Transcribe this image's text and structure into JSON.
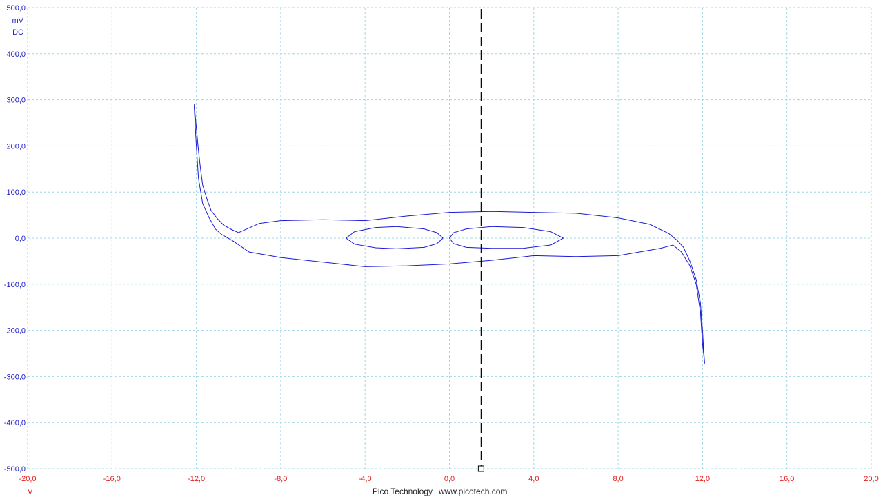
{
  "chart_data": {
    "type": "line",
    "x_unit": "V",
    "y_unit": "mV",
    "y_coupling": "DC",
    "xlim": [
      -20,
      20
    ],
    "ylim": [
      -500,
      500
    ],
    "x_ticks": [
      -20,
      -16,
      -12,
      -8,
      -4,
      0,
      4,
      8,
      12,
      16,
      20
    ],
    "y_ticks": [
      500,
      400,
      300,
      200,
      100,
      0,
      -100,
      -200,
      -300,
      -400,
      -500
    ],
    "x_tick_labels": [
      "-20,0",
      "-16,0",
      "-12,0",
      "-8,0",
      "-4,0",
      "0,0",
      "4,0",
      "8,0",
      "12,0",
      "16,0",
      "20,0"
    ],
    "y_tick_labels": [
      "500,0",
      "400,0",
      "300,0",
      "200,0",
      "100,0",
      "0,0",
      "-100,0",
      "-200,0",
      "-300,0",
      "-400,0",
      "-500,0"
    ],
    "grid": true,
    "colors": {
      "trace": "#1a1ad6",
      "x_axis_text": "#e02020",
      "y_axis_text": "#2020c8",
      "grid": "#9fd8e6"
    },
    "cursor": {
      "x": 1.5
    },
    "series": [
      {
        "values": [
          [
            -12.1,
            290
          ],
          [
            -12.0,
            240
          ],
          [
            -11.9,
            190
          ],
          [
            -11.8,
            150
          ],
          [
            -11.7,
            115
          ],
          [
            -11.5,
            85
          ],
          [
            -11.3,
            60
          ],
          [
            -11.0,
            42
          ],
          [
            -10.7,
            28
          ],
          [
            -10.3,
            18
          ],
          [
            -10.0,
            12
          ],
          [
            -9.0,
            32
          ],
          [
            -8.0,
            38
          ],
          [
            -6.0,
            40
          ],
          [
            -4.0,
            38
          ],
          [
            -2.0,
            48
          ],
          [
            0.0,
            56
          ],
          [
            2.0,
            58
          ],
          [
            4.0,
            56
          ],
          [
            6.0,
            54
          ],
          [
            8.0,
            44
          ],
          [
            9.5,
            30
          ],
          [
            10.4,
            10
          ],
          [
            10.8,
            -5
          ],
          [
            11.1,
            -20
          ],
          [
            11.4,
            -50
          ],
          [
            11.7,
            -90
          ],
          [
            11.9,
            -140
          ],
          [
            12.0,
            -200
          ],
          [
            12.05,
            -240
          ],
          [
            12.1,
            -272
          ],
          [
            12.0,
            -230
          ],
          [
            11.9,
            -160
          ],
          [
            11.7,
            -100
          ],
          [
            11.4,
            -60
          ],
          [
            11.0,
            -30
          ],
          [
            10.6,
            -15
          ],
          [
            10.0,
            -22
          ],
          [
            8.0,
            -38
          ],
          [
            6.0,
            -40
          ],
          [
            4.0,
            -38
          ],
          [
            2.0,
            -48
          ],
          [
            0.0,
            -56
          ],
          [
            -2.0,
            -60
          ],
          [
            -4.0,
            -62
          ],
          [
            -6.0,
            -52
          ],
          [
            -8.0,
            -42
          ],
          [
            -9.5,
            -30
          ],
          [
            -10.3,
            -5
          ],
          [
            -10.8,
            8
          ],
          [
            -11.1,
            20
          ],
          [
            -11.4,
            45
          ],
          [
            -11.7,
            75
          ],
          [
            -11.9,
            130
          ],
          [
            -12.0,
            200
          ],
          [
            -12.1,
            285
          ]
        ]
      },
      {
        "values": [
          [
            -0.3,
            0
          ],
          [
            -0.6,
            12
          ],
          [
            -1.2,
            20
          ],
          [
            -2.5,
            25
          ],
          [
            -3.5,
            23
          ],
          [
            -4.5,
            14
          ],
          [
            -4.9,
            0
          ],
          [
            -4.5,
            -13
          ],
          [
            -3.5,
            -21
          ],
          [
            -2.5,
            -23
          ],
          [
            -1.2,
            -20
          ],
          [
            -0.6,
            -12
          ],
          [
            -0.3,
            0
          ]
        ]
      },
      {
        "values": [
          [
            2.0,
            -22
          ],
          [
            3.5,
            -22
          ],
          [
            4.8,
            -15
          ],
          [
            5.4,
            0
          ],
          [
            4.8,
            14
          ],
          [
            3.5,
            23
          ],
          [
            2.0,
            25
          ],
          [
            0.8,
            20
          ],
          [
            0.2,
            12
          ],
          [
            0.0,
            0
          ],
          [
            0.2,
            -12
          ],
          [
            0.8,
            -20
          ],
          [
            2.0,
            -22
          ]
        ]
      }
    ]
  },
  "footer": {
    "brand": "Pico Technology",
    "url": "www.picotech.com"
  }
}
